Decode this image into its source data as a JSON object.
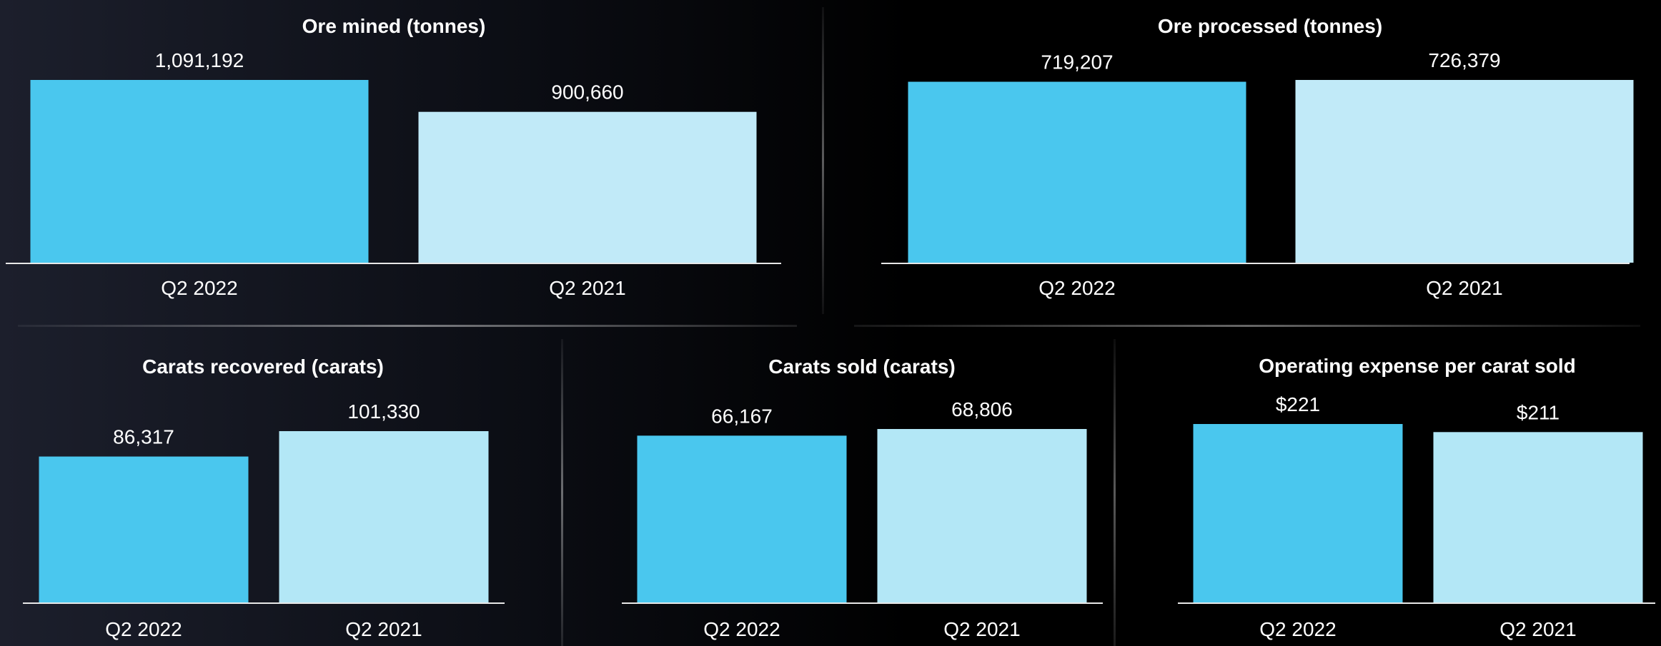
{
  "colors": {
    "current": "#4ac7ee",
    "prior": "#c1eaf8",
    "prior_alt": "#b3e7f6",
    "axis": "#e8e8e8"
  },
  "chart_data": [
    {
      "type": "bar",
      "title": "Ore mined (tonnes)",
      "categories": [
        "Q2 2022",
        "Q2 2021"
      ],
      "values": [
        1091192,
        900660
      ],
      "value_labels": [
        "1,091,192",
        "900,660"
      ],
      "ylim": [
        0,
        1091192
      ]
    },
    {
      "type": "bar",
      "title": "Ore processed (tonnes)",
      "categories": [
        "Q2 2022",
        "Q2 2021"
      ],
      "values": [
        719207,
        726379
      ],
      "value_labels": [
        "719,207",
        "726,379"
      ],
      "ylim": [
        0,
        726379
      ]
    },
    {
      "type": "bar",
      "title": "Carats recovered (carats)",
      "categories": [
        "Q2 2022",
        "Q2 2021"
      ],
      "values": [
        86317,
        101330
      ],
      "value_labels": [
        "86,317",
        "101,330"
      ],
      "ylim": [
        0,
        101330
      ]
    },
    {
      "type": "bar",
      "title": "Carats sold (carats)",
      "categories": [
        "Q2 2022",
        "Q2 2021"
      ],
      "values": [
        66167,
        68806
      ],
      "value_labels": [
        "66,167",
        "68,806"
      ],
      "ylim": [
        0,
        68806
      ]
    },
    {
      "type": "bar",
      "title": "Operating expense per carat sold",
      "categories": [
        "Q2 2022",
        "Q2 2021"
      ],
      "values": [
        221,
        211
      ],
      "value_labels": [
        "$221",
        "$211"
      ],
      "ylim": [
        0,
        221
      ]
    }
  ]
}
